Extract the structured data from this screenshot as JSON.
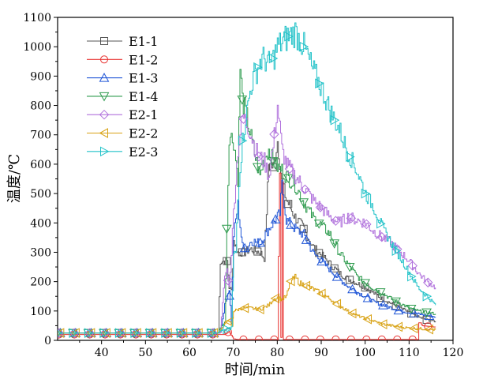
{
  "chart_data": {
    "type": "line",
    "title": "",
    "xlabel": "时间/min",
    "ylabel": "温度/℃",
    "xlim": [
      30,
      120
    ],
    "ylim": [
      0,
      1100
    ],
    "xticks": [
      40,
      50,
      60,
      70,
      80,
      90,
      100,
      110,
      120
    ],
    "yticks": [
      0,
      100,
      200,
      300,
      400,
      500,
      600,
      700,
      800,
      900,
      1000,
      1100
    ],
    "legend_position": "top-left",
    "series": [
      {
        "name": "E1-1",
        "color": "#555555",
        "marker": "square",
        "x": [
          30,
          40,
          50,
          60,
          66.5,
          67,
          68.5,
          69,
          69.5,
          70,
          71,
          72,
          74,
          76,
          77,
          78,
          79,
          80,
          81,
          82,
          84,
          86,
          88,
          90,
          92,
          94,
          96,
          98,
          100,
          102,
          104,
          106,
          108,
          110,
          112,
          114,
          116
        ],
        "y": [
          25,
          25,
          25,
          25,
          25,
          270,
          270,
          180,
          170,
          340,
          300,
          300,
          310,
          300,
          280,
          600,
          590,
          680,
          540,
          480,
          420,
          380,
          320,
          290,
          260,
          230,
          210,
          195,
          180,
          160,
          140,
          125,
          110,
          95,
          80,
          70,
          65
        ]
      },
      {
        "name": "E1-2",
        "color": "#e8312f",
        "marker": "circle",
        "x": [
          30,
          40,
          50,
          60,
          66,
          68,
          69,
          70,
          71,
          72,
          75,
          80,
          80.5,
          80.8,
          81.1,
          81.4,
          82,
          85,
          90,
          95,
          100,
          105,
          110,
          112,
          112.2,
          112.6,
          113,
          116
        ],
        "y": [
          20,
          20,
          20,
          20,
          20,
          20,
          30,
          5,
          3,
          3,
          3,
          3,
          570,
          10,
          540,
          3,
          3,
          3,
          3,
          3,
          3,
          3,
          3,
          3,
          60,
          60,
          50,
          45
        ]
      },
      {
        "name": "E1-3",
        "color": "#1f55d6",
        "marker": "triangle-up",
        "x": [
          30,
          40,
          50,
          60,
          66.5,
          67,
          68,
          69,
          69.5,
          70,
          71,
          72,
          73,
          74,
          76,
          78,
          79,
          80,
          80.5,
          81,
          82,
          84,
          86,
          88,
          90,
          92,
          94,
          96,
          98,
          100,
          102,
          104,
          106,
          108,
          110,
          112,
          114,
          116
        ],
        "y": [
          25,
          25,
          25,
          25,
          25,
          30,
          120,
          175,
          60,
          360,
          460,
          320,
          310,
          340,
          330,
          380,
          400,
          420,
          430,
          530,
          410,
          380,
          360,
          300,
          270,
          240,
          210,
          185,
          165,
          150,
          130,
          120,
          110,
          100,
          95,
          90,
          85,
          80
        ]
      },
      {
        "name": "E1-4",
        "color": "#2e9b4e",
        "marker": "triangle-down",
        "x": [
          30,
          40,
          50,
          60,
          66.5,
          67,
          68,
          69,
          70,
          71,
          71.5,
          72,
          73,
          74,
          75,
          76,
          77,
          78,
          79,
          80,
          81,
          82,
          84,
          86,
          88,
          90,
          92,
          94,
          96,
          98,
          100,
          102,
          104,
          106,
          108,
          110,
          112,
          114,
          116
        ],
        "y": [
          25,
          25,
          25,
          25,
          25,
          45,
          60,
          700,
          680,
          550,
          930,
          820,
          760,
          690,
          620,
          560,
          620,
          650,
          610,
          590,
          580,
          560,
          530,
          470,
          420,
          390,
          360,
          300,
          260,
          220,
          195,
          175,
          160,
          140,
          125,
          110,
          100,
          95,
          90
        ]
      },
      {
        "name": "E2-1",
        "color": "#b071dc",
        "marker": "diamond",
        "x": [
          30,
          40,
          50,
          60,
          66.5,
          67,
          68,
          68.5,
          69,
          69.5,
          70,
          71,
          72,
          73,
          74,
          75,
          76,
          77,
          78,
          79,
          80,
          81,
          82,
          84,
          86,
          88,
          90,
          92,
          94,
          96,
          98,
          100,
          102,
          104,
          106,
          108,
          110,
          112,
          114,
          116
        ],
        "y": [
          25,
          25,
          25,
          25,
          25,
          30,
          220,
          240,
          180,
          300,
          440,
          650,
          760,
          740,
          700,
          650,
          620,
          610,
          560,
          660,
          800,
          650,
          600,
          560,
          520,
          480,
          450,
          420,
          400,
          420,
          410,
          400,
          370,
          350,
          330,
          300,
          270,
          230,
          200,
          180
        ]
      },
      {
        "name": "E2-2",
        "color": "#d8a214",
        "marker": "triangle-left",
        "x": [
          30,
          40,
          50,
          60,
          66.5,
          67,
          68,
          69,
          69.5,
          70,
          72,
          74,
          76,
          78,
          79,
          80,
          81,
          82,
          83,
          84,
          85,
          86,
          88,
          90,
          92,
          94,
          96,
          98,
          100,
          102,
          104,
          106,
          108,
          110,
          112,
          114,
          116
        ],
        "y": [
          25,
          25,
          25,
          25,
          25,
          30,
          60,
          65,
          55,
          100,
          110,
          110,
          105,
          120,
          140,
          145,
          140,
          150,
          200,
          215,
          195,
          190,
          175,
          160,
          140,
          120,
          100,
          85,
          75,
          65,
          55,
          50,
          45,
          42,
          40,
          38,
          36
        ]
      },
      {
        "name": "E2-3",
        "color": "#21c2c8",
        "marker": "triangle-right",
        "x": [
          30,
          40,
          50,
          60,
          66.5,
          67,
          68,
          69,
          69.5,
          70,
          70.5,
          71,
          72,
          73,
          74,
          75,
          76,
          77,
          78,
          79,
          80,
          82,
          84,
          86,
          88,
          90,
          92,
          94,
          96,
          98,
          100,
          102,
          104,
          106,
          108,
          110,
          112,
          114,
          116
        ],
        "y": [
          25,
          25,
          25,
          25,
          25,
          30,
          35,
          40,
          45,
          290,
          300,
          500,
          680,
          780,
          870,
          910,
          950,
          960,
          940,
          960,
          1000,
          1030,
          1050,
          1000,
          920,
          860,
          780,
          720,
          640,
          580,
          500,
          450,
          380,
          330,
          280,
          230,
          180,
          150,
          120
        ]
      }
    ]
  }
}
